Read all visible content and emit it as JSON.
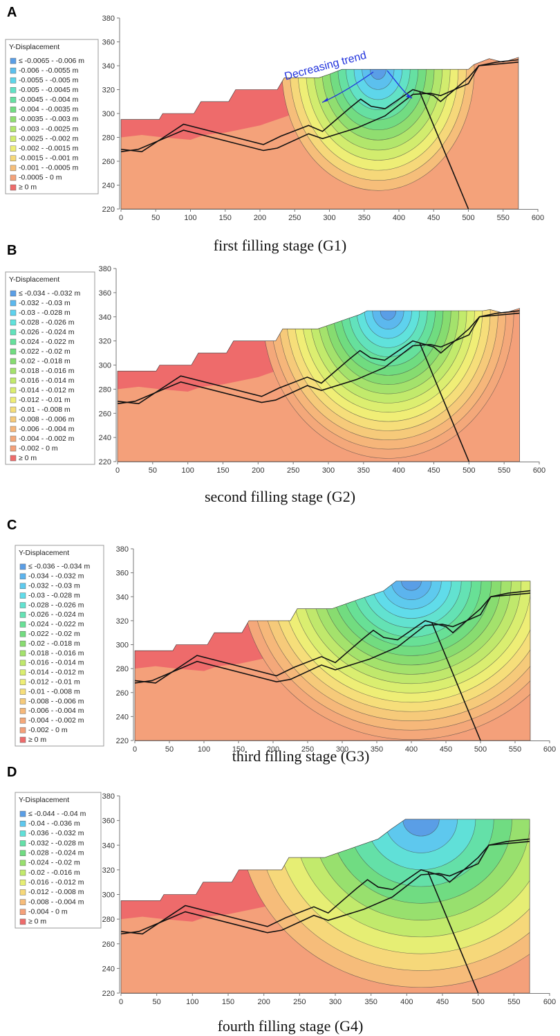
{
  "panels": [
    {
      "label": "A",
      "caption": "first filling stage (G1)",
      "legend_title": "Y-Displacement",
      "legend_labels": [
        "≤ -0.0065 - -0.006 m",
        "-0.006 - -0.0055 m",
        "-0.0055 - -0.005 m",
        "-0.005 - -0.0045 m",
        "-0.0045 - -0.004 m",
        "-0.004 - -0.0035 m",
        "-0.0035 - -0.003 m",
        "-0.003 - -0.0025 m",
        "-0.0025 - -0.002 m",
        "-0.002 - -0.0015 m",
        "-0.0015 - -0.001 m",
        "-0.001 - -0.0005 m",
        "-0.0005 - 0 m",
        "≥ 0 m"
      ],
      "legend_colors": [
        "#5a9ee6",
        "#5cc0ee",
        "#5ed6ea",
        "#62e2c6",
        "#66e0a2",
        "#72dc82",
        "#90de70",
        "#b2e66c",
        "#d2ec6e",
        "#eeee76",
        "#f6d87a",
        "#f6be7a",
        "#f4a27a",
        "#ee6b6b"
      ],
      "xlim": [
        0,
        600
      ],
      "ylim": [
        220,
        380
      ],
      "xticks": [
        0,
        50,
        100,
        150,
        200,
        250,
        300,
        350,
        400,
        450,
        500,
        550,
        600
      ],
      "yticks": [
        220,
        240,
        260,
        280,
        300,
        320,
        340,
        360,
        380
      ],
      "annotation": "Decreasing trend"
    },
    {
      "label": "B",
      "caption": "second filling stage (G2)",
      "legend_title": "Y-Displacement",
      "legend_labels": [
        "≤ -0.034 - -0.032 m",
        "-0.032 - -0.03 m",
        "-0.03 - -0.028 m",
        "-0.028 - -0.026 m",
        "-0.026 - -0.024 m",
        "-0.024 - -0.022 m",
        "-0.022 - -0.02 m",
        "-0.02 - -0.018 m",
        "-0.018 - -0.016 m",
        "-0.016 - -0.014 m",
        "-0.014 - -0.012 m",
        "-0.012 - -0.01 m",
        "-0.01 - -0.008 m",
        "-0.008 - -0.006 m",
        "-0.006 - -0.004 m",
        "-0.004 - -0.002 m",
        "-0.002 - 0 m",
        "≥ 0 m"
      ],
      "legend_colors": [
        "#5a9ee6",
        "#5cb8ee",
        "#5ed2ee",
        "#60e2dc",
        "#62e2bc",
        "#66e09c",
        "#70dc80",
        "#86dc70",
        "#a4e26c",
        "#c2ea6c",
        "#dcee70",
        "#f0ee76",
        "#f6de7a",
        "#f6ca7a",
        "#f6b67a",
        "#f4a87a",
        "#f4a07a",
        "#ee6b6b"
      ],
      "xlim": [
        0,
        600
      ],
      "ylim": [
        220,
        380
      ],
      "xticks": [
        0,
        50,
        100,
        150,
        200,
        250,
        300,
        350,
        400,
        450,
        500,
        550,
        600
      ],
      "yticks": [
        220,
        240,
        260,
        280,
        300,
        320,
        340,
        360,
        380
      ]
    },
    {
      "label": "C",
      "caption": "third filling stage (G3)",
      "legend_title": "Y-Displacement",
      "legend_labels": [
        "≤ -0.036 - -0.034 m",
        "-0.034 - -0.032 m",
        "-0.032 - -0.03 m",
        "-0.03 - -0.028 m",
        "-0.028 - -0.026 m",
        "-0.026 - -0.024 m",
        "-0.024 - -0.022 m",
        "-0.022 - -0.02 m",
        "-0.02 - -0.018 m",
        "-0.018 - -0.016 m",
        "-0.016 - -0.014 m",
        "-0.014 - -0.012 m",
        "-0.012 - -0.01 m",
        "-0.01 - -0.008 m",
        "-0.008 - -0.006 m",
        "-0.006 - -0.004 m",
        "-0.004 - -0.002 m",
        "-0.002 - 0 m",
        "≥ 0 m"
      ],
      "legend_colors": [
        "#5a9ee6",
        "#5cb4ee",
        "#5ecaee",
        "#60dcea",
        "#62e2d0",
        "#64e2b4",
        "#68e096",
        "#72dc80",
        "#88dc70",
        "#a4e26c",
        "#c0e86c",
        "#daee70",
        "#eeee76",
        "#f6de7a",
        "#f6ca7a",
        "#f6b87a",
        "#f4a87a",
        "#f4a07a",
        "#ee6b6b"
      ],
      "xlim": [
        0,
        600
      ],
      "ylim": [
        220,
        380
      ],
      "xticks": [
        0,
        50,
        100,
        150,
        200,
        250,
        300,
        350,
        400,
        450,
        500,
        550,
        600
      ],
      "yticks": [
        220,
        240,
        260,
        280,
        300,
        320,
        340,
        360,
        380
      ]
    },
    {
      "label": "D",
      "caption": "fourth filling stage (G4)",
      "legend_title": "Y-Displacement",
      "legend_labels": [
        "≤ -0.044 - -0.04 m",
        "-0.04 - -0.036 m",
        "-0.036 - -0.032 m",
        "-0.032 - -0.028 m",
        "-0.028 - -0.024 m",
        "-0.024 - -0.02 m",
        "-0.02 - -0.016 m",
        "-0.016 - -0.012 m",
        "-0.012 - -0.008 m",
        "-0.008 - -0.004 m",
        "-0.004 - 0 m",
        "≥ 0 m"
      ],
      "legend_colors": [
        "#5a9ee6",
        "#5ec8ee",
        "#60e0d8",
        "#64e0a8",
        "#70dc82",
        "#98e06e",
        "#c2ea6c",
        "#e6ee74",
        "#f6d87a",
        "#f6bc7a",
        "#f4a07a",
        "#ee6b6b"
      ],
      "xlim": [
        0,
        600
      ],
      "ylim": [
        220,
        380
      ],
      "xticks": [
        0,
        50,
        100,
        150,
        200,
        250,
        300,
        350,
        400,
        450,
        500,
        550,
        600
      ],
      "yticks": [
        220,
        240,
        260,
        280,
        300,
        320,
        340,
        360,
        380
      ]
    }
  ]
}
